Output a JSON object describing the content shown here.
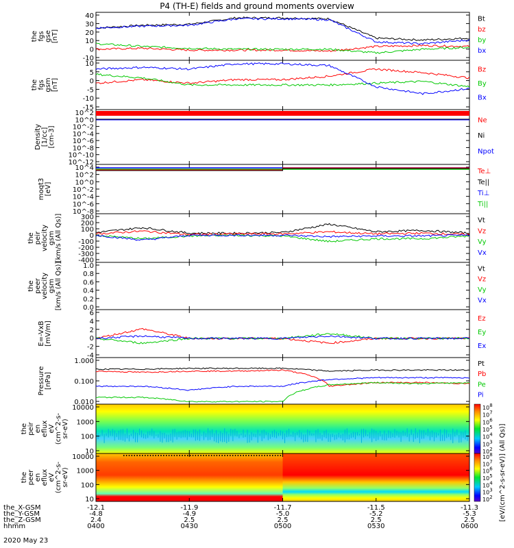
{
  "title": "P4 (TH-E) fields and ground moments overview",
  "date_label": "2020 May 23",
  "orbit_rows": [
    {
      "label": "the_X-GSM",
      "values": [
        "-12.1",
        "-11.9",
        "-11.7",
        "-11.5",
        "-11.3"
      ]
    },
    {
      "label": "the_Y-GSM",
      "values": [
        "-4.8",
        "-4.9",
        "-5.0",
        "-5.2",
        "-5.3"
      ]
    },
    {
      "label": "the_Z-GSM",
      "values": [
        "2.4",
        "2.5",
        "2.5",
        "2.5",
        "2.5"
      ]
    },
    {
      "label": "hhmm",
      "values": [
        "0400",
        "0430",
        "0500",
        "0530",
        "0600"
      ]
    }
  ],
  "colorbar": {
    "ticks": [
      "10^8",
      "10^7",
      "10^6",
      "10^5",
      "10^4",
      "10^3",
      "10^2"
    ],
    "label": "[eV/(cm^2-s-sr-eV)] (All Qs)]"
  },
  "chart_data": [
    {
      "id": "p1",
      "type": "line",
      "ylabel": [
        "the",
        "fgs",
        "gse",
        "[nT]"
      ],
      "y_ticks": [
        "40",
        "30",
        "20",
        "10",
        "0",
        "-10"
      ],
      "ylim": [
        -10,
        42
      ],
      "series": [
        {
          "name": "Bt",
          "color": "#000000"
        },
        {
          "name": "bz",
          "color": "#ff0000"
        },
        {
          "name": "by",
          "color": "#00c800"
        },
        {
          "name": "bx",
          "color": "#0000ff"
        }
      ],
      "x_hours": [
        0,
        0.25,
        0.5,
        0.75,
        1.0,
        1.25,
        1.5,
        1.75,
        2.0
      ],
      "values": {
        "Bt": [
          25,
          28,
          29,
          36,
          36,
          35,
          14,
          12,
          14
        ],
        "bz": [
          2,
          3,
          1,
          1,
          1,
          0,
          5,
          6,
          5
        ],
        "by": [
          8,
          5,
          3,
          2,
          2,
          2,
          -2,
          2,
          4
        ],
        "bx": [
          25,
          27,
          28,
          35,
          35,
          34,
          10,
          8,
          12
        ]
      }
    },
    {
      "id": "p2",
      "type": "line",
      "ylabel": [
        "the",
        "fgs",
        "gsm",
        "[nT]"
      ],
      "y_ticks": [
        "10",
        "5",
        "0",
        "-5",
        "-10",
        "-15"
      ],
      "ylim": [
        -17,
        11
      ],
      "series": [
        {
          "name": "Bz",
          "color": "#ff0000"
        },
        {
          "name": "By",
          "color": "#00c800"
        },
        {
          "name": "Bx",
          "color": "#0000ff"
        }
      ],
      "x_hours": [
        0,
        0.25,
        0.5,
        0.75,
        1.0,
        1.25,
        1.5,
        1.75,
        2.0
      ],
      "values": {
        "Bz": [
          -2,
          0,
          -2,
          0,
          0,
          2,
          6,
          4,
          1
        ],
        "By": [
          3,
          1,
          -3,
          -3,
          -3,
          -3,
          -2,
          -1,
          -4
        ],
        "Bx": [
          6,
          7,
          6,
          9,
          9,
          8,
          -4,
          -8,
          -5
        ]
      }
    },
    {
      "id": "p3",
      "type": "line",
      "ylabel": [
        "Density",
        "[1/cc]",
        "[cm-3]"
      ],
      "y_ticks": [
        "10^2",
        "10^0",
        "10^-2",
        "10^-4",
        "10^-6",
        "10^-8",
        "10^-10",
        "10^-12"
      ],
      "series": [
        {
          "name": "Ne",
          "color": "#ff0000"
        },
        {
          "name": "Ni",
          "color": "#000000"
        },
        {
          "name": "Npot",
          "color": "#0000ff"
        }
      ]
    },
    {
      "id": "p4",
      "type": "line",
      "ylabel": [
        "moqt3",
        "[eV]"
      ],
      "y_ticks": [
        "10^4",
        "10^2",
        "10^0",
        "10^-2",
        "10^-4",
        "10^-6",
        "10^-8"
      ],
      "series": [
        {
          "name": "Te⊥",
          "color": "#ff0000"
        },
        {
          "name": "Te||",
          "color": "#000000"
        },
        {
          "name": "Ti⊥",
          "color": "#0000ff"
        },
        {
          "name": "Ti||",
          "color": "#00c800"
        }
      ]
    },
    {
      "id": "p5",
      "type": "line",
      "ylabel": [
        "the",
        "peir",
        "velocity",
        "gsm",
        "[km/s (All Qs)]"
      ],
      "y_ticks": [
        "300",
        "200",
        "100",
        "0",
        "-100",
        "-200",
        "-300",
        "-400"
      ],
      "ylim": [
        -400,
        300
      ],
      "series": [
        {
          "name": "Vt",
          "color": "#000000"
        },
        {
          "name": "Vz",
          "color": "#ff0000"
        },
        {
          "name": "Vy",
          "color": "#00c800"
        },
        {
          "name": "Vx",
          "color": "#0000ff"
        }
      ],
      "x_hours": [
        0,
        0.25,
        0.5,
        0.75,
        1.0,
        1.25,
        1.5,
        1.75,
        2.0
      ],
      "values": {
        "Vt": [
          30,
          100,
          20,
          20,
          30,
          150,
          40,
          60,
          20
        ],
        "Vz": [
          10,
          50,
          0,
          10,
          10,
          40,
          10,
          20,
          0
        ],
        "Vy": [
          -10,
          -60,
          -20,
          -10,
          -20,
          -100,
          -60,
          -60,
          -20
        ],
        "Vx": [
          -10,
          -80,
          -10,
          -10,
          -10,
          -30,
          -20,
          -20,
          -10
        ]
      }
    },
    {
      "id": "p6",
      "type": "line",
      "ylabel": [
        "the",
        "peer",
        "velocity",
        "gsm",
        "[km/s (All Qs)]"
      ],
      "y_ticks": [
        "1.0",
        "0.8",
        "0.6",
        "0.4",
        "0.2",
        "0.0"
      ],
      "ylim": [
        0,
        1
      ],
      "series": [
        {
          "name": "Vt",
          "color": "#000000"
        },
        {
          "name": "Vz",
          "color": "#ff0000"
        },
        {
          "name": "Vy",
          "color": "#00c800"
        },
        {
          "name": "Vx",
          "color": "#0000ff"
        }
      ]
    },
    {
      "id": "p7",
      "type": "line",
      "ylabel": [
        "E=-VxB",
        "[mV/m]"
      ],
      "y_ticks": [
        "6",
        "4",
        "2",
        "0",
        "-2",
        "-4"
      ],
      "ylim": [
        -4,
        6
      ],
      "series": [
        {
          "name": "Ez",
          "color": "#ff0000"
        },
        {
          "name": "Ey",
          "color": "#00c800"
        },
        {
          "name": "Ex",
          "color": "#0000ff"
        }
      ],
      "x_hours": [
        0,
        0.25,
        0.5,
        0.75,
        1.0,
        1.25,
        1.5,
        1.75,
        2.0
      ],
      "values": {
        "Ez": [
          0,
          2,
          0,
          0,
          0,
          -1,
          0,
          0,
          0
        ],
        "Ey": [
          0,
          -1,
          0,
          0,
          0,
          1,
          0,
          0,
          0
        ],
        "Ex": [
          0,
          0.5,
          0,
          0,
          0,
          0.5,
          0,
          0,
          0
        ]
      }
    },
    {
      "id": "p8",
      "type": "line",
      "ylabel": [
        "Pressure",
        "[nPa]"
      ],
      "y_ticks": [
        "1.000",
        "0.100",
        "0.010"
      ],
      "series": [
        {
          "name": "Pt",
          "color": "#000000"
        },
        {
          "name": "Pb",
          "color": "#ff0000"
        },
        {
          "name": "Pe",
          "color": "#00c800"
        },
        {
          "name": "Pi",
          "color": "#0000ff"
        }
      ],
      "x_hours": [
        0,
        0.25,
        0.5,
        0.75,
        1.0,
        1.25,
        1.5,
        1.75,
        2.0
      ],
      "values": {
        "Pt": [
          0.45,
          0.45,
          0.5,
          0.5,
          0.5,
          0.35,
          0.4,
          0.4,
          0.4
        ],
        "Pb": [
          0.35,
          0.3,
          0.35,
          0.35,
          0.4,
          0.05,
          0.08,
          0.08,
          0.07
        ],
        "Pe": [
          0.012,
          0.012,
          0.007,
          0.007,
          0.007,
          0.06,
          0.08,
          0.07,
          0.08
        ],
        "Pi": [
          0.05,
          0.05,
          0.03,
          0.05,
          0.05,
          0.12,
          0.15,
          0.15,
          0.15
        ]
      }
    },
    {
      "id": "p9",
      "type": "heatmap",
      "ylabel": [
        "the",
        "peir",
        "en",
        "eflux",
        "eV",
        "(cm^2-s-",
        "sr-eV)"
      ],
      "y_ticks": [
        "10000",
        "1000",
        "100",
        "10"
      ]
    },
    {
      "id": "p10",
      "type": "heatmap",
      "ylabel": [
        "the",
        "peer",
        "en",
        "eflux",
        "eV",
        "(cm^2-s-",
        "sr-eV)"
      ],
      "y_ticks": [
        "10000",
        "1000",
        "100",
        "10"
      ]
    }
  ]
}
